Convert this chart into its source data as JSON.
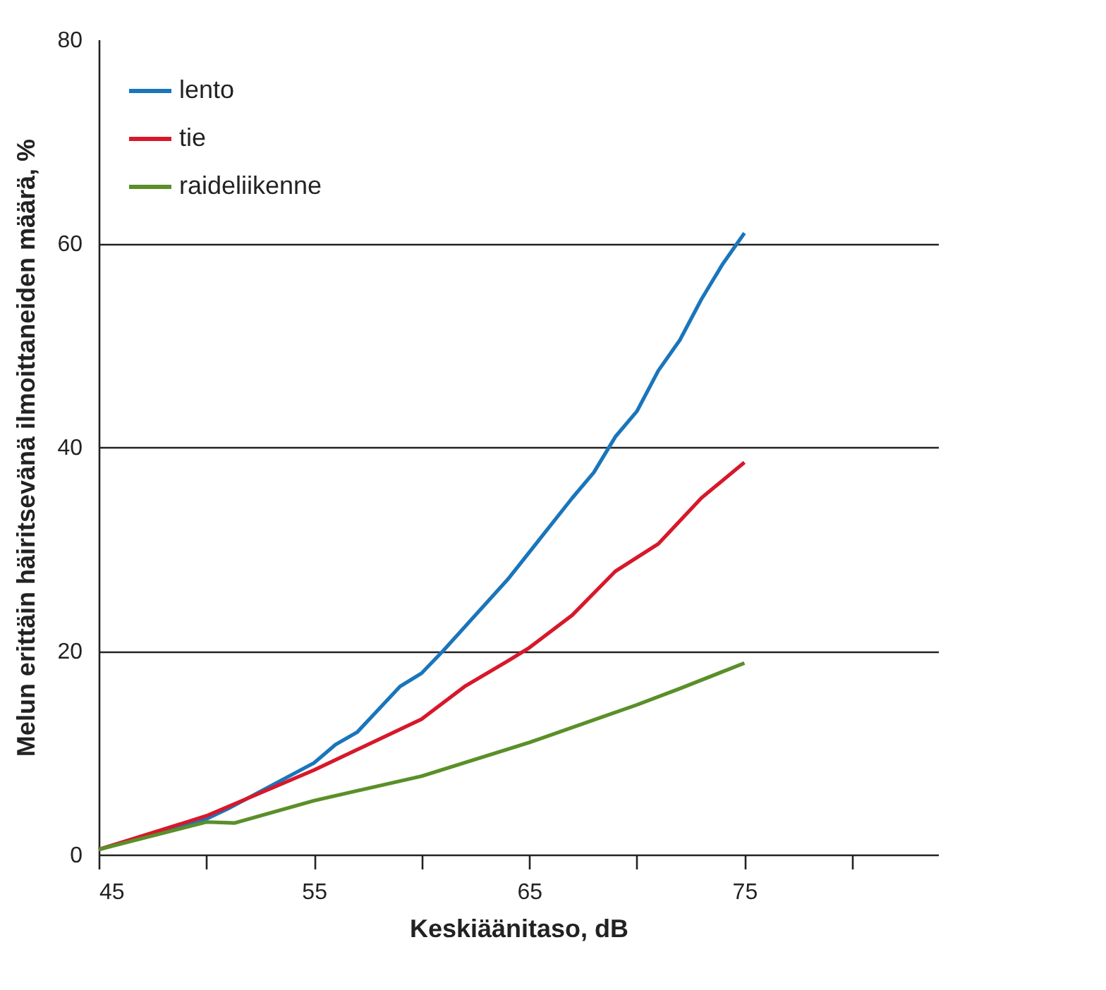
{
  "chart_data": {
    "type": "line",
    "xlabel": "Keskiäänitaso, dB",
    "ylabel": "Melun erittäin häiritsevänä ilmoittaneiden määrä, %",
    "xlim": [
      45,
      84
    ],
    "xticks": [
      45,
      {
        "value": 50,
        "label": null
      },
      55,
      {
        "value": 60,
        "label": null
      },
      65,
      {
        "value": 70,
        "label": null
      },
      75,
      {
        "value": 80,
        "label": null
      }
    ],
    "ylim": [
      0,
      80
    ],
    "yticks": [
      0,
      20,
      40,
      60,
      80
    ],
    "grid": "y",
    "legend": "top left",
    "line_style": "solid",
    "marker": "none",
    "series": [
      {
        "name": "lento",
        "color": "#1a75bb",
        "x": [
          45,
          50,
          51,
          55,
          56,
          57,
          59,
          60,
          61,
          64,
          67,
          68,
          69,
          70,
          71,
          72,
          73,
          74,
          75
        ],
        "values": [
          0.5,
          3.5,
          4.5,
          9,
          10.8,
          12,
          16.5,
          17.8,
          20,
          27,
          35,
          37.5,
          41,
          43.5,
          47.5,
          50.5,
          54.5,
          58,
          61
        ]
      },
      {
        "name": "tie",
        "color": "#d7182a",
        "x": [
          45,
          50,
          55,
          60,
          62,
          64,
          65,
          67,
          69,
          71,
          73,
          75
        ],
        "values": [
          0.5,
          3.8,
          8.3,
          13.3,
          16.5,
          19,
          20.3,
          23.5,
          27.8,
          30.5,
          35,
          38.5
        ]
      },
      {
        "name": "raideliikenne",
        "color": "#5a8f29",
        "x": [
          45,
          50,
          51.3,
          55,
          60,
          65,
          70,
          72,
          75
        ],
        "values": [
          0.5,
          3.2,
          3.1,
          5.3,
          7.7,
          11,
          14.7,
          16.3,
          18.8
        ]
      }
    ]
  }
}
